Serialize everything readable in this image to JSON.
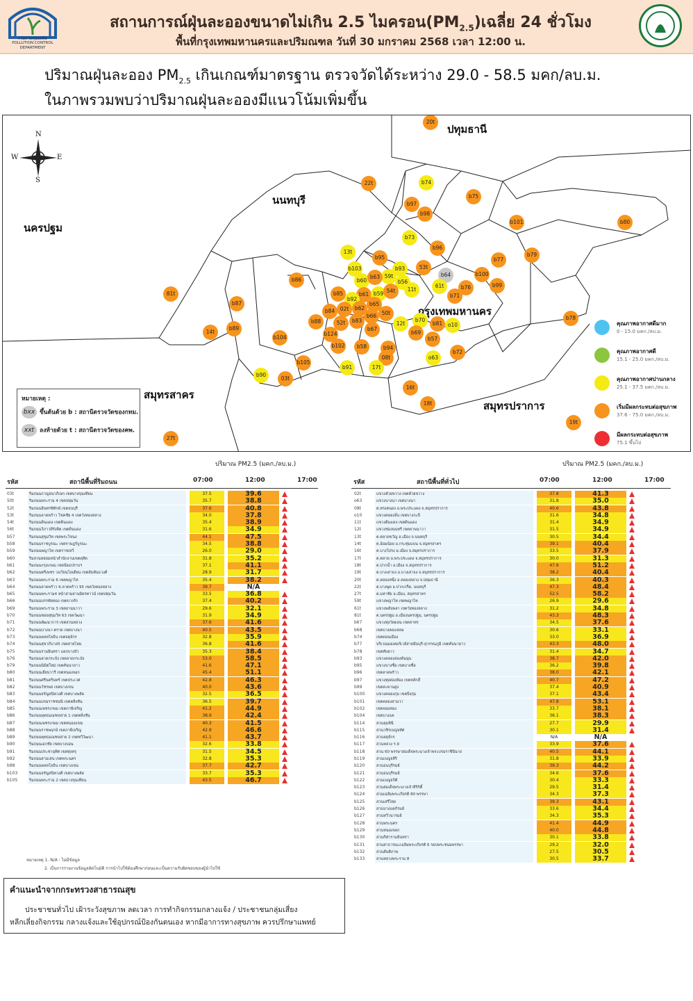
{
  "header": {
    "title": "สถานการณ์ฝุ่นละอองขนาดไม่เกิน 2.5 ไมครอน(PM",
    "title_sub": "2.5",
    "title_tail": ")เฉลี่ย 24 ชั่วโมง",
    "subtitle": "พื้นที่กรุงเทพมหานครและปริมณฑล วันที่ 30 มกราคม 2568 เวลา 12:00 น.",
    "logo_left_caption": "กรมควบคุมมลพิษ\nPOLLUTION CONTROL DEPARTMENT"
  },
  "summary": {
    "line1_a": "ปริมาณฝุ่นละออง PM",
    "line1_sub": "2.5",
    "line1_b": " เกินเกณฑ์มาตรฐาน ตรวจวัดได้ระหว่าง 29.0 - 58.5 มคก/ลบ.ม.",
    "line2": "ในภาพรวมพบว่าปริมาณฝุ่นละอองมีแนวโน้มเพิ่มขึ้น"
  },
  "map": {
    "compass": {
      "n": "N",
      "s": "S",
      "e": "E",
      "w": "W"
    },
    "regions": [
      {
        "id": "pathum",
        "label": "ปทุมธานี"
      },
      {
        "id": "nonthaburi",
        "label": "นนทบุรี"
      },
      {
        "id": "nakhonpathom",
        "label": "นครปฐม"
      },
      {
        "id": "bangkok",
        "label": "กรุงเทพมหานคร"
      },
      {
        "id": "samutsakhon",
        "label": "สมุทรสาคร"
      },
      {
        "id": "samutprakan",
        "label": "สมุทรปราการ"
      }
    ],
    "colors": {
      "orange": "#f7941d",
      "yellow": "#f5ea14",
      "grey": "#c8c8c8"
    },
    "stations": [
      {
        "id": "20t",
        "c": "orange"
      },
      {
        "id": "22t",
        "c": "orange"
      },
      {
        "id": "b74",
        "c": "yellow"
      },
      {
        "id": "b75",
        "c": "orange"
      },
      {
        "id": "b97",
        "c": "orange"
      },
      {
        "id": "b98",
        "c": "orange"
      },
      {
        "id": "b101",
        "c": "orange"
      },
      {
        "id": "b80",
        "c": "orange"
      },
      {
        "id": "b73",
        "c": "yellow"
      },
      {
        "id": "b96",
        "c": "orange"
      },
      {
        "id": "b77",
        "c": "orange"
      },
      {
        "id": "b79",
        "c": "orange"
      },
      {
        "id": "13t",
        "c": "yellow"
      },
      {
        "id": "b95",
        "c": "orange"
      },
      {
        "id": "b93",
        "c": "yellow"
      },
      {
        "id": "53t",
        "c": "orange"
      },
      {
        "id": "b100",
        "c": "orange"
      },
      {
        "id": "b103",
        "c": "yellow"
      },
      {
        "id": "59t",
        "c": "yellow"
      },
      {
        "id": "b64",
        "c": "grey"
      },
      {
        "id": "b99",
        "c": "orange"
      },
      {
        "id": "b86",
        "c": "orange"
      },
      {
        "id": "b60",
        "c": "yellow"
      },
      {
        "id": "b63",
        "c": "orange"
      },
      {
        "id": "b56",
        "c": "yellow"
      },
      {
        "id": "61t",
        "c": "yellow"
      },
      {
        "id": "b76",
        "c": "orange"
      },
      {
        "id": "81t",
        "c": "orange"
      },
      {
        "id": "b85",
        "c": "orange"
      },
      {
        "id": "b61",
        "c": "orange"
      },
      {
        "id": "b59",
        "c": "yellow"
      },
      {
        "id": "54t",
        "c": "orange"
      },
      {
        "id": "11t",
        "c": "yellow"
      },
      {
        "id": "b71",
        "c": "orange"
      },
      {
        "id": "b87",
        "c": "orange"
      },
      {
        "id": "b92",
        "c": "yellow"
      },
      {
        "id": "b65",
        "c": "orange"
      },
      {
        "id": "b84",
        "c": "orange"
      },
      {
        "id": "02t",
        "c": "orange"
      },
      {
        "id": "b62",
        "c": "orange"
      },
      {
        "id": "b66",
        "c": "orange"
      },
      {
        "id": "50t",
        "c": "orange"
      },
      {
        "id": "b70",
        "c": "yellow"
      },
      {
        "id": "b89",
        "c": "orange"
      },
      {
        "id": "b88",
        "c": "orange"
      },
      {
        "id": "52t",
        "c": "orange"
      },
      {
        "id": "b83",
        "c": "orange"
      },
      {
        "id": "12t",
        "c": "yellow"
      },
      {
        "id": "b81",
        "c": "orange"
      },
      {
        "id": "o10",
        "c": "yellow"
      },
      {
        "id": "b78",
        "c": "orange"
      },
      {
        "id": "14t",
        "c": "orange"
      },
      {
        "id": "b104",
        "c": "orange"
      },
      {
        "id": "b124",
        "c": "orange"
      },
      {
        "id": "b67",
        "c": "orange"
      },
      {
        "id": "b69",
        "c": "orange"
      },
      {
        "id": "b57",
        "c": "orange"
      },
      {
        "id": "b102",
        "c": "orange"
      },
      {
        "id": "b58",
        "c": "orange"
      },
      {
        "id": "b94",
        "c": "orange"
      },
      {
        "id": "b72",
        "c": "orange"
      },
      {
        "id": "b105",
        "c": "orange"
      },
      {
        "id": "08t",
        "c": "orange"
      },
      {
        "id": "o63",
        "c": "yellow"
      },
      {
        "id": "b91",
        "c": "yellow"
      },
      {
        "id": "17t",
        "c": "yellow"
      },
      {
        "id": "b90",
        "c": "yellow"
      },
      {
        "id": "03t",
        "c": "orange"
      },
      {
        "id": "16t",
        "c": "orange"
      },
      {
        "id": "18t",
        "c": "orange"
      },
      {
        "id": "19t",
        "c": "orange"
      },
      {
        "id": "27t",
        "c": "orange"
      }
    ]
  },
  "legend": [
    {
      "label": "คุณภาพอากาศดีมาก",
      "range": "0 - 15.0 มคก./ลบ.ม.",
      "color": "#4fc3ef"
    },
    {
      "label": "คุณภาพอากาศดี",
      "range": "15.1 - 25.0 มคก./ลบ.ม.",
      "color": "#8cc63f"
    },
    {
      "label": "คุณภาพอากาศปานกลาง",
      "range": "25.1 - 37.5 มคก./ลบ.ม.",
      "color": "#f5ea14"
    },
    {
      "label": "เริ่มมีผลกระทบต่อสุขภาพ",
      "range": "37.6 - 75.0 มคก./ลบ.ม.",
      "color": "#f7941d"
    },
    {
      "label": "มีผลกระทบต่อสุขภาพ",
      "range": "75.1 ขึ้นไป",
      "color": "#ed2f34"
    }
  ],
  "note": {
    "title": "หมายเหตุ :",
    "chip_b": "bxx",
    "item_b": "ขึ้นต้นด้วย b : สถานีตรวจวัดของกทม.",
    "chip_t": "xxt",
    "item_t": "ลงท้ายด้วย t : สถานีตรวจวัดของคพ."
  },
  "unit_label": "ปริมาณ PM2.5 (มคก./ลบ.ม.)",
  "table_headers": {
    "code": "รหัส",
    "left_place": "สถานีพื้นที่ริมถนน",
    "right_place": "สถานีพื้นที่ทั่วไป",
    "t07": "07:00",
    "t12": "12:00",
    "t17": "17:00"
  },
  "colors": {
    "cell_yellow": "#f8e71c",
    "cell_orange": "#f6a623",
    "name_bg": "#eaf4fb",
    "arrow": "#e53030"
  },
  "left_rows": [
    {
      "code": "03t",
      "name": "ริมถนนกาญจนาภิเษก เขตบางขุนเทียน",
      "v07": "37.5",
      "v12": "39.6",
      "up": true
    },
    {
      "code": "50t",
      "name": "ริมถนนพระราม 4 เขตปทุมวัน",
      "v07": "35.7",
      "v12": "38.8",
      "up": true
    },
    {
      "code": "52t",
      "name": "ริมถนนอินทรพิทักษ์ เขตธนบุรี",
      "v07": "37.6",
      "v12": "40.8",
      "up": true
    },
    {
      "code": "53t",
      "name": "ริมถนนลาดพร้าว โชคชัย 4 เขตวังทองหลาง",
      "v07": "34.0",
      "v12": "37.8",
      "up": true
    },
    {
      "code": "54t",
      "name": "ริมถนนดินแดง เขตดินแดง",
      "v07": "35.4",
      "v12": "38.9",
      "up": true
    },
    {
      "code": "56t",
      "name": "ริมถนนวิภาวดีรังสิต เขตดินแดง",
      "v07": "31.6",
      "v12": "34.9",
      "up": true
    },
    {
      "code": "b57",
      "name": "ริมถนนสุขุมวิท เขตพระโขนง",
      "v07": "44.1",
      "v12": "47.5",
      "up": true
    },
    {
      "code": "b58",
      "name": "ริมถนนราชบูรณะ เขตราษฎร์บูรณะ",
      "v07": "34.5",
      "v12": "38.8",
      "up": true
    },
    {
      "code": "b59",
      "name": "ริมถนนพญาไท เขตราชเทวี",
      "v07": "26.0",
      "v12": "29.0",
      "up": true
    },
    {
      "code": "b60",
      "name": "ริมสวนหย่อมหน้าสำนักงานเขตดุสิต",
      "v07": "31.8",
      "v12": "35.2",
      "up": true
    },
    {
      "code": "b61",
      "name": "ริมถนนกรุงเกษม เขตป้อมปราบฯ",
      "v07": "37.1",
      "v12": "41.1",
      "up": true
    },
    {
      "code": "b62",
      "name": "ริมถนนตรีเพชร วงเวียนโอเดียน เขตสัมพันธวงศ์",
      "v07": "28.9",
      "v12": "31.7",
      "up": true
    },
    {
      "code": "b63",
      "name": "ริมถนนพระราม 6 เขตพญาไท",
      "v07": "35.4",
      "v12": "38.2",
      "up": true
    },
    {
      "code": "b64",
      "name": "ริมถนนลาดพร้าว ซ.ลาดพร้าว 95 เขตวังทองหลาง",
      "v07": "39.7",
      "v12": "N/A",
      "up": false
    },
    {
      "code": "b65",
      "name": "ริมถนนพระราม4 หน้าสามย่านมิตรทาวน์ เขตปทุมวัน",
      "v07": "33.5",
      "v12": "36.8",
      "up": true
    },
    {
      "code": "b66",
      "name": "ริมถนนบรรทัดทอง เขตบางรัก",
      "v07": "37.4",
      "v12": "40.2",
      "up": true
    },
    {
      "code": "b69",
      "name": "ริมถนนพระราม 3 เขตยานนาวา",
      "v07": "29.6",
      "v12": "32.1",
      "up": true
    },
    {
      "code": "b70",
      "name": "ริมถนนซอยสุขุมวิท 63 เขตวัฒนา",
      "v07": "31.9",
      "v12": "34.9",
      "up": true
    },
    {
      "code": "b71",
      "name": "ริมถนนพัฒนาการ เขตสวนหลวง",
      "v07": "37.6",
      "v12": "41.6",
      "up": true
    },
    {
      "code": "b72",
      "name": "ริมถนนบางนา-ตราด เขตบางนา",
      "v07": "40.5",
      "v12": "43.5",
      "up": true
    },
    {
      "code": "b73",
      "name": "ริมถนนพหลโยธิน เขตจตุจักร",
      "v07": "32.8",
      "v12": "35.9",
      "up": true
    },
    {
      "code": "b74",
      "name": "ริมถนนสุขาภิบาล5 เขตสายไหม",
      "v07": "36.8",
      "v12": "41.6",
      "up": true
    },
    {
      "code": "b75",
      "name": "ริมถนนรามอินทรา แยกบางบัว",
      "v07": "35.3",
      "v12": "38.4",
      "up": true
    },
    {
      "code": "b76",
      "name": "ริมถนนลาดกระบัง เขตลาดกระบัง",
      "v07": "53.0",
      "v12": "58.5",
      "up": true
    },
    {
      "code": "b79",
      "name": "ริมถนนนิมิตใหม่ เขตคันนายาว",
      "v07": "41.6",
      "v12": "47.1",
      "up": true
    },
    {
      "code": "b80",
      "name": "ริมถนนเลียบวารี เขตหนองจอก",
      "v07": "45.4",
      "v12": "51.1",
      "up": true
    },
    {
      "code": "b81",
      "name": "ริมถนนศรีนครินทร์ เขตประเวศ",
      "v07": "42.8",
      "v12": "46.3",
      "up": true
    },
    {
      "code": "b82",
      "name": "ริมถนนวัชรพล เขตบางเขน",
      "v07": "40.0",
      "v12": "43.6",
      "up": true
    },
    {
      "code": "b83",
      "name": "ริมถนนจรัญสนิทวงศ์ เขตบางพลัด",
      "v07": "32.5",
      "v12": "36.5",
      "up": true
    },
    {
      "code": "b84",
      "name": "ริมถนนบรมราชชนนี เขตตลิ่งชัน",
      "v07": "36.5",
      "v12": "39.7",
      "up": true
    },
    {
      "code": "b85",
      "name": "ริมถนนเพชรเกษม เขตภาษีเจริญ",
      "v07": "41.2",
      "v12": "44.9",
      "up": true
    },
    {
      "code": "b86",
      "name": "ริมถนนพุทธมณฑลสาย 1 เขตตลิ่งชัน",
      "v07": "38.9",
      "v12": "42.4",
      "up": true
    },
    {
      "code": "b87",
      "name": "ริมถนนเพชรเกษม เขตหนองแขม",
      "v07": "40.3",
      "v12": "41.5",
      "up": true
    },
    {
      "code": "b88",
      "name": "ริมถนนราชพฤกษ์ เขตภาษีเจริญ",
      "v07": "42.9",
      "v12": "46.6",
      "up": true
    },
    {
      "code": "b89",
      "name": "ริมถนนพุทธมณฑลสาย 2 เขตทวีวัฒนา",
      "v07": "41.1",
      "v12": "43.7",
      "up": true
    },
    {
      "code": "b90",
      "name": "ริมถนนเอกชัย เขตบางบอน",
      "v07": "32.6",
      "v12": "33.8",
      "up": true
    },
    {
      "code": "b91",
      "name": "ริมถนนประชาอุทิศ เขตทุ่งครุ",
      "v07": "31.5",
      "v12": "34.5",
      "up": true
    },
    {
      "code": "b92",
      "name": "ริมถนนสามเสน เขตพระนคร",
      "v07": "32.8",
      "v12": "35.3",
      "up": true
    },
    {
      "code": "b98",
      "name": "ริมถนนพหลโยธิน เขตบางเขน",
      "v07": "37.7",
      "v12": "42.7",
      "up": true
    },
    {
      "code": "b103",
      "name": "ริมถนนจรัญสนิทวงศ์ เขตบางพลัด",
      "v07": "33.7",
      "v12": "35.3",
      "up": true
    },
    {
      "code": "b105",
      "name": "ริมถนนพระราม 2 เขตบางขุนเทียน",
      "v07": "43.5",
      "v12": "46.7",
      "up": true
    }
  ],
  "footnotes": [
    "หมายเหตุ 1. N/A : ไม่มีข้อมูล",
    "2. เป็นการรายงานข้อมูลอัตโนมัติ การนำไปใช้ต้องศึกษาก่อนและเป็นความรับผิดชอบของผู้นำไปใช้"
  ],
  "right_rows": [
    {
      "code": "02t",
      "name": "แขวงห้วยขวาง เขตห้วยขวาง",
      "v07": "37.8",
      "v12": "41.3",
      "up": true
    },
    {
      "code": "o63",
      "name": "แขวงบางนา เขตบางนา",
      "v07": "31.8",
      "v12": "35.0",
      "up": true
    },
    {
      "code": "08t",
      "name": "ต.ทรงคนอง อ.พระประแดง จ.สมุทรปราการ",
      "v07": "40.6",
      "v12": "43.8",
      "up": true
    },
    {
      "code": "o10",
      "name": "แขวงคลองจั่น เขตบางกะปิ",
      "v07": "31.6",
      "v12": "34.8",
      "up": true
    },
    {
      "code": "11t",
      "name": "แขวงดินแดง เขตดินแดง",
      "v07": "31.4",
      "v12": "34.9",
      "up": true
    },
    {
      "code": "12t",
      "name": "แขวงช่องนนทรี เขตยานนาวา",
      "v07": "31.5",
      "v12": "34.9",
      "up": true
    },
    {
      "code": "13t",
      "name": "ต.ตลาดขวัญ อ.เมือง จ.นนทบุรี",
      "v07": "30.5",
      "v12": "34.4",
      "up": true
    },
    {
      "code": "14t",
      "name": "ต.อ้อมน้อย อ.กระทุ่มแบน จ.สมุทรสาคร",
      "v07": "39.1",
      "v12": "40.4",
      "up": true
    },
    {
      "code": "16t",
      "name": "ต.บางโปรง อ.เมือง จ.สมุทรปราการ",
      "v07": "33.5",
      "v12": "37.9",
      "up": true
    },
    {
      "code": "17t",
      "name": "ต.ตลาด อ.พระประแดง จ.สมุทรปราการ",
      "v07": "30.0",
      "v12": "31.3",
      "up": true
    },
    {
      "code": "18t",
      "name": "ต.ปากน้ำ อ.เมือง จ.สมุทรปราการ",
      "v07": "47.6",
      "v12": "51.2",
      "up": true
    },
    {
      "code": "19t",
      "name": "ต.บางเสาธง อ.บางเสาธง จ.สมุทรปราการ",
      "v07": "38.2",
      "v12": "40.4",
      "up": true
    },
    {
      "code": "20t",
      "name": "ต.คลองหนึ่ง อ.คลองหลวง จ.ปทุมธานี",
      "v07": "36.3",
      "v12": "40.3",
      "up": true
    },
    {
      "code": "22t",
      "name": "ต.บางพูด อ.ปากเกร็ด, นนทบุรี",
      "v07": "47.3",
      "v12": "48.4",
      "up": true
    },
    {
      "code": "27t",
      "name": "ต.มหาชัย อ.เมือง, สมุทรสาคร",
      "v07": "52.5",
      "v12": "58.2",
      "up": true
    },
    {
      "code": "59t",
      "name": "แขวงพญาไท เขตพญาไท",
      "v07": "26.9",
      "v12": "29.6",
      "up": true
    },
    {
      "code": "61t",
      "name": "แขวงพลับพลา เขตวังทองหลาง",
      "v07": "31.2",
      "v12": "34.8",
      "up": true
    },
    {
      "code": "81t",
      "name": "ต.นครปฐม อ.เมืองนครปฐม, นครปฐม",
      "v07": "43.3",
      "v12": "48.3",
      "up": true
    },
    {
      "code": "b67",
      "name": "แขวงทุ่งวัดดอน เขตสาทร",
      "v07": "34.5",
      "v12": "37.6",
      "up": true
    },
    {
      "code": "b68",
      "name": "เขตบางคอแหลม",
      "v07": "30.6",
      "v12": "33.1",
      "up": true
    },
    {
      "code": "b74",
      "name": "เขตดอนเมือง",
      "v07": "33.0",
      "v12": "36.9",
      "up": true
    },
    {
      "code": "b77",
      "name": "บริเวณมอเตอร์เวย์สายมีนบุรี-สุวรรณภูมิ เขตคันนายาว",
      "v07": "43.3",
      "v12": "48.0",
      "up": true
    },
    {
      "code": "b78",
      "name": "เขตทับยาว",
      "v07": "31.4",
      "v12": "34.7",
      "up": true
    },
    {
      "code": "b93",
      "name": "แขวงคลองสองต้นนุ่น",
      "v07": "38.7",
      "v12": "42.0",
      "up": true
    },
    {
      "code": "b95",
      "name": "แขวงบางซื่อ เขตบางซื่อ",
      "v07": "36.2",
      "v12": "39.8",
      "up": true
    },
    {
      "code": "b96",
      "name": "เขตลาดพร้าว",
      "v07": "38.0",
      "v12": "42.1",
      "up": true
    },
    {
      "code": "b97",
      "name": "แขวงทุ่งสองห้อง เขตหลักสี่",
      "v07": "40.7",
      "v12": "47.2",
      "up": true
    },
    {
      "code": "b99",
      "name": "เขตสะพานสูง",
      "v07": "37.4",
      "v12": "40.9",
      "up": true
    },
    {
      "code": "b100",
      "name": "แขวงคลองกุ่ม เขตบึงกุ่ม",
      "v07": "37.1",
      "v12": "43.4",
      "up": true
    },
    {
      "code": "b101",
      "name": "เขตคลองสามวา",
      "v07": "47.8",
      "v12": "53.1",
      "up": true
    },
    {
      "code": "b102",
      "name": "เขตจอมทอง",
      "v07": "33.7",
      "v12": "38.1",
      "up": true
    },
    {
      "code": "b104",
      "name": "เขตบางแค",
      "v07": "36.1",
      "v12": "38.3",
      "up": true
    },
    {
      "code": "b114",
      "name": "สวนลุมพินี",
      "v07": "27.7",
      "v12": "29.9",
      "up": true
    },
    {
      "code": "b115",
      "name": "สวนวชิรเบญจทัศ",
      "v07": "30.1",
      "v12": "31.4",
      "up": true
    },
    {
      "code": "b116",
      "name": "สวนจตุจักร",
      "v07": "N/A",
      "v12": "N/A",
      "up": false
    },
    {
      "code": "b117",
      "name": "สวนหลวง ร.9",
      "v07": "33.9",
      "v12": "37.6",
      "up": true
    },
    {
      "code": "b118",
      "name": "สวน 60 พรรษาสมเด็จพระนางเจ้าพระบรมราชินีนาถ",
      "v07": "40.5",
      "v12": "44.1",
      "up": true
    },
    {
      "code": "b119",
      "name": "สวนเบญจสิริ",
      "v07": "31.8",
      "v12": "33.9",
      "up": true
    },
    {
      "code": "b120",
      "name": "สวนธนบุรีรมย์",
      "v07": "39.3",
      "v12": "44.2",
      "up": true
    },
    {
      "code": "b121",
      "name": "สวนธนบุรีรมย์",
      "v07": "34.6",
      "v12": "37.6",
      "up": true
    },
    {
      "code": "b122",
      "name": "สวนเบญจกิติ",
      "v07": "30.4",
      "v12": "33.3",
      "up": true
    },
    {
      "code": "b123",
      "name": "สวนสมเด็จพระนางเจ้าสิริกิติ์",
      "v07": "29.5",
      "v12": "31.4",
      "up": true
    },
    {
      "code": "b124",
      "name": "สวนเฉลิมพระเกียรติ 80 พรรษา",
      "v07": "34.3",
      "v12": "37.3",
      "up": true
    },
    {
      "code": "b125",
      "name": "สวนเสรีไทย",
      "v07": "39.3",
      "v12": "43.1",
      "up": true
    },
    {
      "code": "b126",
      "name": "สวนบางแคภิรมย์",
      "v07": "33.6",
      "v12": "34.4",
      "up": true
    },
    {
      "code": "b127",
      "name": "สวนทวีวนารมย์",
      "v07": "34.3",
      "v12": "35.3",
      "up": true
    },
    {
      "code": "b128",
      "name": "สวนพระนคร",
      "v07": "41.4",
      "v12": "44.9",
      "up": true
    },
    {
      "code": "b129",
      "name": "สวนหนองจอก",
      "v07": "40.0",
      "v12": "44.8",
      "up": true
    },
    {
      "code": "b130",
      "name": "สวนกีฬารามอินทรา",
      "v07": "30.1",
      "v12": "33.8",
      "up": true
    },
    {
      "code": "b131",
      "name": "สวนสาธารณะเฉลิมพระเกียรติ 6 รอบพระชนมพรรษา",
      "v07": "29.2",
      "v12": "32.0",
      "up": true
    },
    {
      "code": "b132",
      "name": "สวนสันติภาพ",
      "v07": "27.5",
      "v12": "30.5",
      "up": true
    },
    {
      "code": "b133",
      "name": "สวนหลวงพระราม 8",
      "v07": "30.5",
      "v12": "33.7",
      "up": true
    }
  ],
  "advice": {
    "title": "คำแนะนำจากกระทรวงสาธารณสุข",
    "line1": "ประชาชนทั่วไป เฝ้าระวังสุขภาพ ลดเวลา การทำกิจกรรมกลางแจ้ง / ประชาชนกลุ่มเสี่ยง",
    "line2": "หลีกเลี่ยงกิจกรรม กลางแจ้งและใช้อุปกรณ์ป้องกันตนเอง หากมีอาการทางสุขภาพ ควรปรึกษาแพทย์"
  }
}
